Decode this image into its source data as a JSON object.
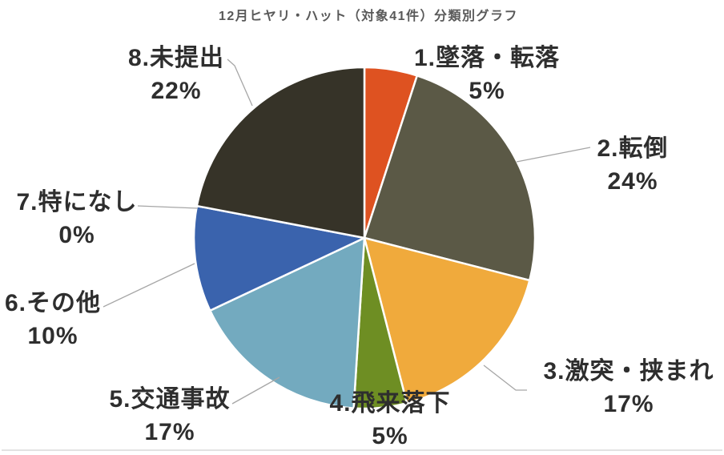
{
  "chart_data": {
    "type": "pie",
    "title": "12月ヒヤリ・ハット（対象41件）分類別グラフ",
    "direction": "clockwise",
    "start_angle_deg": 0,
    "legend_position": "none",
    "label_style": "outside: category name + percent",
    "total_items": 41,
    "slices": [
      {
        "label": "1.墜落・転落",
        "pct": 5,
        "pct_label": "5%",
        "color": "#de5221"
      },
      {
        "label": "2.転倒",
        "pct": 24,
        "pct_label": "24%",
        "color": "#5b5946"
      },
      {
        "label": "3.激突・挟まれ",
        "pct": 17,
        "pct_label": "17%",
        "color": "#f0aa3c"
      },
      {
        "label": "4.飛来落下",
        "pct": 5,
        "pct_label": "5%",
        "color": "#6e8e23"
      },
      {
        "label": "5.交通事故",
        "pct": 17,
        "pct_label": "17%",
        "color": "#73aabf"
      },
      {
        "label": "6.その他",
        "pct": 10,
        "pct_label": "10%",
        "color": "#3a63ad"
      },
      {
        "label": "7.特になし",
        "pct": 0,
        "pct_label": "0%",
        "color": null
      },
      {
        "label": "8.未提出",
        "pct": 22,
        "pct_label": "22%",
        "color": "#363328"
      }
    ]
  }
}
